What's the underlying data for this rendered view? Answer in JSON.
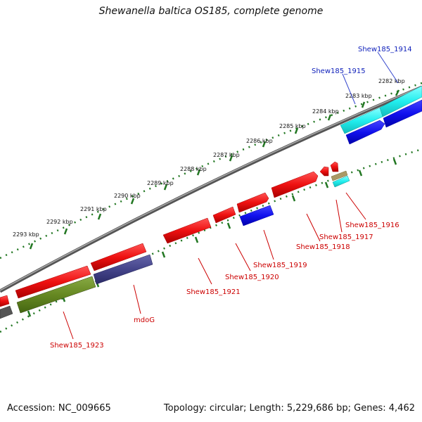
{
  "title": "Shewanella baltica OS185, complete genome",
  "accession": "Accession: NC_009665",
  "summary": "Topology: circular; Length: 5,229,686 bp; Genes: 4,462",
  "scale_labels": [
    "2282 kbp",
    "2283 kbp",
    "2284 kbp",
    "2285 kbp",
    "2286 kbp",
    "2287 kbp",
    "2288 kbp",
    "2289 kbp",
    "2290 kbp",
    "2291 kbp",
    "2292 kbp",
    "2293 kbp"
  ],
  "gene_labels": [
    "Shew185_1914",
    "Shew185_1915",
    "Shew185_1916",
    "Shew185_1917",
    "Shew185_1918",
    "Shew185_1919",
    "Shew185_1920",
    "Shew185_1921",
    "mdoG",
    "Shew185_1923"
  ],
  "colors": {
    "cds": "#ee1111",
    "cds_label": "#cc0000",
    "blue_feature": "#1111ee",
    "blue_label": "#1122bb",
    "cyan_feature": "#22eeee",
    "slate_feature": "#44448a",
    "olive_feature": "#668822",
    "backbone": "#888888",
    "tick": "#227722"
  }
}
